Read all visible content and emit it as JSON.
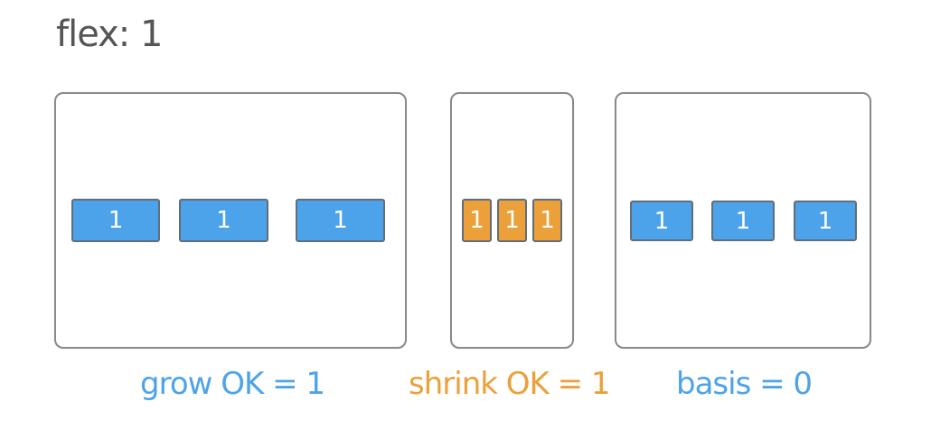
{
  "title": "flex: 1",
  "colors": {
    "blue": "#4da3ea",
    "orange": "#eba03a",
    "title": "#555555",
    "panel_border": "#8a8a8a"
  },
  "panels": [
    {
      "name": "grow",
      "items": [
        "1",
        "1",
        "1"
      ],
      "item_color": "#4da3ea",
      "caption": "grow OK = 1",
      "caption_color": "#4da3ea"
    },
    {
      "name": "shrink",
      "items": [
        "1",
        "1",
        "1"
      ],
      "item_color": "#eba03a",
      "caption": "shrink OK = 1",
      "caption_color": "#eba03a"
    },
    {
      "name": "basis",
      "items": [
        "1",
        "1",
        "1"
      ],
      "item_color": "#4da3ea",
      "caption": "basis = 0",
      "caption_color": "#4da3ea"
    }
  ]
}
